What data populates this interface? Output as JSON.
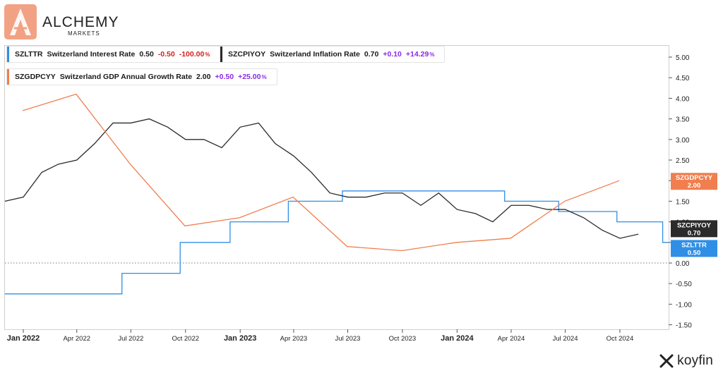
{
  "brand": {
    "name": "ALCHEMY",
    "sub": "MARKETS",
    "footer_brand": "koyfin"
  },
  "colors": {
    "blue": "#2f8fe6",
    "black": "#2b2b2b",
    "orange": "#f07e4e",
    "pos": "#8a2be2",
    "neg": "#d41e1e",
    "logo": "#f2a284"
  },
  "legend": [
    {
      "ticker": "SZLTTR",
      "name": "Switzerland Interest Rate",
      "value": "0.50",
      "change": "-0.50",
      "pct": "-100.00",
      "pct_suffix": "%",
      "color_key": "blue",
      "sign": "neg"
    },
    {
      "ticker": "SZCPIYOY",
      "name": "Switzerland Inflation Rate",
      "value": "0.70",
      "change": "+0.10",
      "pct": "+14.29",
      "pct_suffix": "%",
      "color_key": "black",
      "sign": "pos"
    },
    {
      "ticker": "SZGDPCYY",
      "name": "Switzerland GDP Annual Growth Rate",
      "value": "2.00",
      "change": "+0.50",
      "pct": "+25.00",
      "pct_suffix": "%",
      "color_key": "orange",
      "sign": "pos"
    }
  ],
  "chart_data": {
    "type": "line",
    "x_ticks": [
      {
        "label": "Jan 2022",
        "date": "2022-01",
        "bold": true
      },
      {
        "label": "Apr 2022",
        "date": "2022-04",
        "bold": false
      },
      {
        "label": "Jul 2022",
        "date": "2022-07",
        "bold": false
      },
      {
        "label": "Oct 2022",
        "date": "2022-10",
        "bold": false
      },
      {
        "label": "Jan 2023",
        "date": "2023-01",
        "bold": true
      },
      {
        "label": "Apr 2023",
        "date": "2023-04",
        "bold": false
      },
      {
        "label": "Jul 2023",
        "date": "2023-07",
        "bold": false
      },
      {
        "label": "Oct 2023",
        "date": "2023-10",
        "bold": false
      },
      {
        "label": "Jan 2024",
        "date": "2024-01",
        "bold": true
      },
      {
        "label": "Apr 2024",
        "date": "2024-04",
        "bold": false
      },
      {
        "label": "Jul 2024",
        "date": "2024-07",
        "bold": false
      },
      {
        "label": "Oct 2024",
        "date": "2024-10",
        "bold": false
      }
    ],
    "y_ticks": [
      "5.00",
      "4.50",
      "4.00",
      "3.50",
      "3.00",
      "2.50",
      "2.00",
      "1.50",
      "1.00",
      "0.50",
      "0.00",
      "-0.50",
      "-1.00",
      "-1.50"
    ],
    "ylim": [
      -1.5,
      5.0
    ],
    "zero_line": true,
    "series": [
      {
        "name": "SZLTTR",
        "color_key": "blue",
        "step": true,
        "end_label": "SZLTTR",
        "end_value": "0.50",
        "points": [
          [
            "2021-11-01",
            -0.75
          ],
          [
            "2022-06-16",
            -0.25
          ],
          [
            "2022-09-22",
            0.5
          ],
          [
            "2022-12-15",
            1.0
          ],
          [
            "2023-03-23",
            1.5
          ],
          [
            "2023-06-22",
            1.75
          ],
          [
            "2024-03-21",
            1.5
          ],
          [
            "2024-06-20",
            1.25
          ],
          [
            "2024-09-26",
            1.0
          ],
          [
            "2024-12-12",
            0.5
          ],
          [
            "2024-12-31",
            0.5
          ]
        ]
      },
      {
        "name": "SZCPIYOY",
        "color_key": "black",
        "step": false,
        "end_label": "SZCPIYOY",
        "end_value": "0.70",
        "points": [
          [
            "2021-11-01",
            1.5
          ],
          [
            "2021-12-01",
            1.5
          ],
          [
            "2022-01-01",
            1.6
          ],
          [
            "2022-02-01",
            2.2
          ],
          [
            "2022-03-01",
            2.4
          ],
          [
            "2022-04-01",
            2.5
          ],
          [
            "2022-05-01",
            2.9
          ],
          [
            "2022-06-01",
            3.4
          ],
          [
            "2022-07-01",
            3.4
          ],
          [
            "2022-08-01",
            3.5
          ],
          [
            "2022-09-01",
            3.3
          ],
          [
            "2022-10-01",
            3.0
          ],
          [
            "2022-11-01",
            3.0
          ],
          [
            "2022-12-01",
            2.8
          ],
          [
            "2023-01-01",
            3.3
          ],
          [
            "2023-02-01",
            3.4
          ],
          [
            "2023-03-01",
            2.9
          ],
          [
            "2023-04-01",
            2.6
          ],
          [
            "2023-05-01",
            2.2
          ],
          [
            "2023-06-01",
            1.7
          ],
          [
            "2023-07-01",
            1.6
          ],
          [
            "2023-08-01",
            1.6
          ],
          [
            "2023-09-01",
            1.7
          ],
          [
            "2023-10-01",
            1.7
          ],
          [
            "2023-11-01",
            1.4
          ],
          [
            "2023-12-01",
            1.7
          ],
          [
            "2024-01-01",
            1.3
          ],
          [
            "2024-02-01",
            1.2
          ],
          [
            "2024-03-01",
            1.0
          ],
          [
            "2024-04-01",
            1.4
          ],
          [
            "2024-05-01",
            1.4
          ],
          [
            "2024-06-01",
            1.3
          ],
          [
            "2024-07-01",
            1.3
          ],
          [
            "2024-08-01",
            1.1
          ],
          [
            "2024-09-01",
            0.8
          ],
          [
            "2024-10-01",
            0.6
          ],
          [
            "2024-11-01",
            0.7
          ]
        ]
      },
      {
        "name": "SZGDPCYY",
        "color_key": "orange",
        "step": false,
        "end_label": "SZGDPCYY",
        "end_value": "2.00",
        "points": [
          [
            "2021-12-31",
            3.7
          ],
          [
            "2022-03-31",
            4.1
          ],
          [
            "2022-06-30",
            2.4
          ],
          [
            "2022-09-30",
            0.9
          ],
          [
            "2022-12-31",
            1.1
          ],
          [
            "2023-03-31",
            1.6
          ],
          [
            "2023-06-30",
            0.4
          ],
          [
            "2023-09-30",
            0.3
          ],
          [
            "2023-12-31",
            0.5
          ],
          [
            "2024-03-31",
            0.6
          ],
          [
            "2024-06-30",
            1.5
          ],
          [
            "2024-09-30",
            2.0
          ]
        ]
      }
    ]
  }
}
